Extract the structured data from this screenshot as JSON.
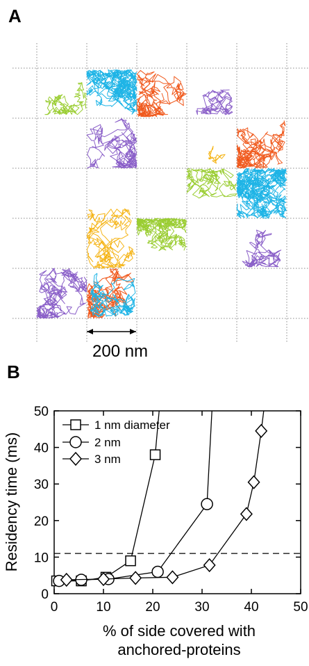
{
  "panel_a": {
    "label": "A",
    "scale_bar_label": "200 nm",
    "trajectory_colors": [
      "#9acd32",
      "#1eb4e6",
      "#f05a1e",
      "#8a5fc8",
      "#f5b416"
    ]
  },
  "panel_b": {
    "label": "B"
  },
  "chart_data": {
    "type": "line",
    "title": "",
    "xlabel_line1": "% of side covered with",
    "xlabel_line2": "anchored-proteins",
    "ylabel": "Residency time (ms)",
    "xlim": [
      0,
      50
    ],
    "ylim": [
      0,
      50
    ],
    "x_ticks": [
      0,
      10,
      20,
      30,
      40,
      50
    ],
    "y_ticks": [
      0,
      10,
      20,
      30,
      40,
      50
    ],
    "x_tick_labels": [
      "0",
      "10",
      "20",
      "30",
      "40",
      "50"
    ],
    "y_tick_labels": [
      "0",
      "10",
      "20",
      "30",
      "40",
      "50"
    ],
    "reference_line_y": 11,
    "legend_position": "top-left",
    "series": [
      {
        "name": "1 nm diameter",
        "marker": "square",
        "points": [
          [
            0.5,
            3.5
          ],
          [
            5.5,
            3.5
          ],
          [
            10.5,
            4.5
          ],
          [
            15.5,
            9
          ],
          [
            20.5,
            38
          ]
        ],
        "curve": [
          [
            0.5,
            3.5
          ],
          [
            5.5,
            3.5
          ],
          [
            10.5,
            4.5
          ],
          [
            15.5,
            9
          ],
          [
            20.5,
            38
          ],
          [
            21.3,
            50
          ]
        ]
      },
      {
        "name": "2 nm",
        "marker": "circle",
        "points": [
          [
            1,
            3.5
          ],
          [
            5.5,
            3.8
          ],
          [
            11,
            4
          ],
          [
            21,
            6
          ],
          [
            31,
            24.5
          ]
        ],
        "curve": [
          [
            1,
            3.5
          ],
          [
            5.5,
            3.8
          ],
          [
            11,
            4
          ],
          [
            21,
            6
          ],
          [
            31,
            24.5
          ],
          [
            32,
            50
          ]
        ]
      },
      {
        "name": "3 nm",
        "marker": "diamond",
        "points": [
          [
            2.5,
            3.8
          ],
          [
            10,
            4
          ],
          [
            16.5,
            4.3
          ],
          [
            24,
            4.5
          ],
          [
            31.5,
            7.8
          ],
          [
            39,
            21.8
          ],
          [
            40.5,
            30.5
          ],
          [
            42,
            44.5
          ]
        ],
        "curve": [
          [
            2.5,
            3.8
          ],
          [
            10,
            4
          ],
          [
            16.5,
            4.3
          ],
          [
            24,
            4.5
          ],
          [
            31.5,
            7.8
          ],
          [
            39,
            21.8
          ],
          [
            40.5,
            30.5
          ],
          [
            42,
            44.5
          ],
          [
            42.5,
            50
          ]
        ]
      }
    ]
  }
}
